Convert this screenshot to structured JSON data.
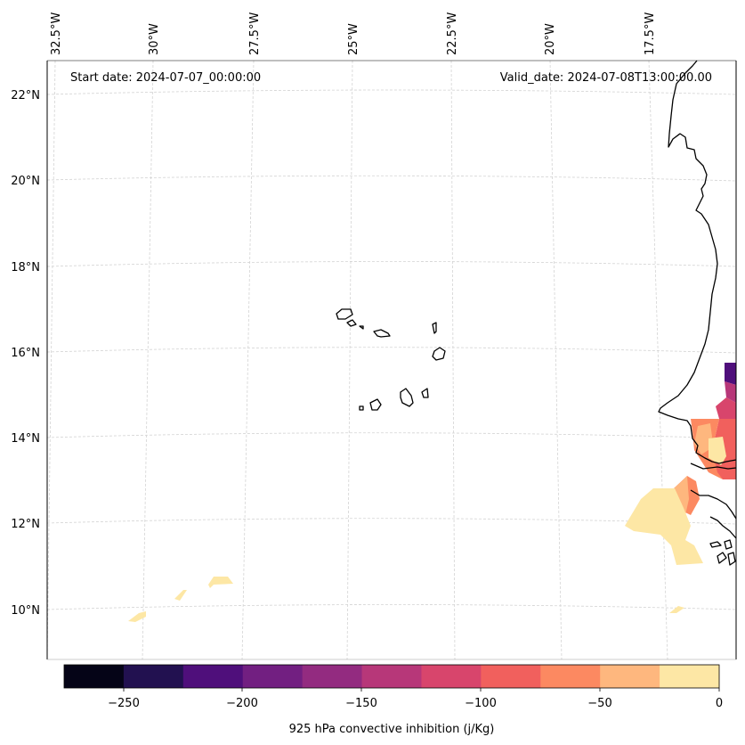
{
  "header": {
    "start_label": "Start date: 2024-07-07_00:00:00",
    "valid_label": "Valid_date: 2024-07-08T13:00:00.00"
  },
  "map": {
    "lon_labels": [
      "32.5°W",
      "30°W",
      "27.5°W",
      "25°W",
      "22.5°W",
      "20°W",
      "17.5°W"
    ],
    "lat_labels": [
      "22°N",
      "20°N",
      "18°N",
      "16°N",
      "14°N",
      "12°N",
      "10°N"
    ],
    "gridlines": true
  },
  "colorbar": {
    "title": "925 hPa convective inhibition (j/Kg)",
    "tick_labels": [
      "−250",
      "−200",
      "−150",
      "−100",
      "−50",
      "0"
    ],
    "range": [
      -275,
      0
    ],
    "levels": [
      -275,
      -250,
      -225,
      -200,
      -175,
      -150,
      -125,
      -100,
      -75,
      -50,
      -25,
      0
    ],
    "colors": [
      "#050417",
      "#221150",
      "#4f0f7b",
      "#721f81",
      "#932b80",
      "#b73779",
      "#d8456c",
      "#f1605d",
      "#fc8961",
      "#feb77e",
      "#fde7a5"
    ]
  },
  "colors": {
    "coast": "#000000",
    "grid": "#d0d0d0"
  }
}
